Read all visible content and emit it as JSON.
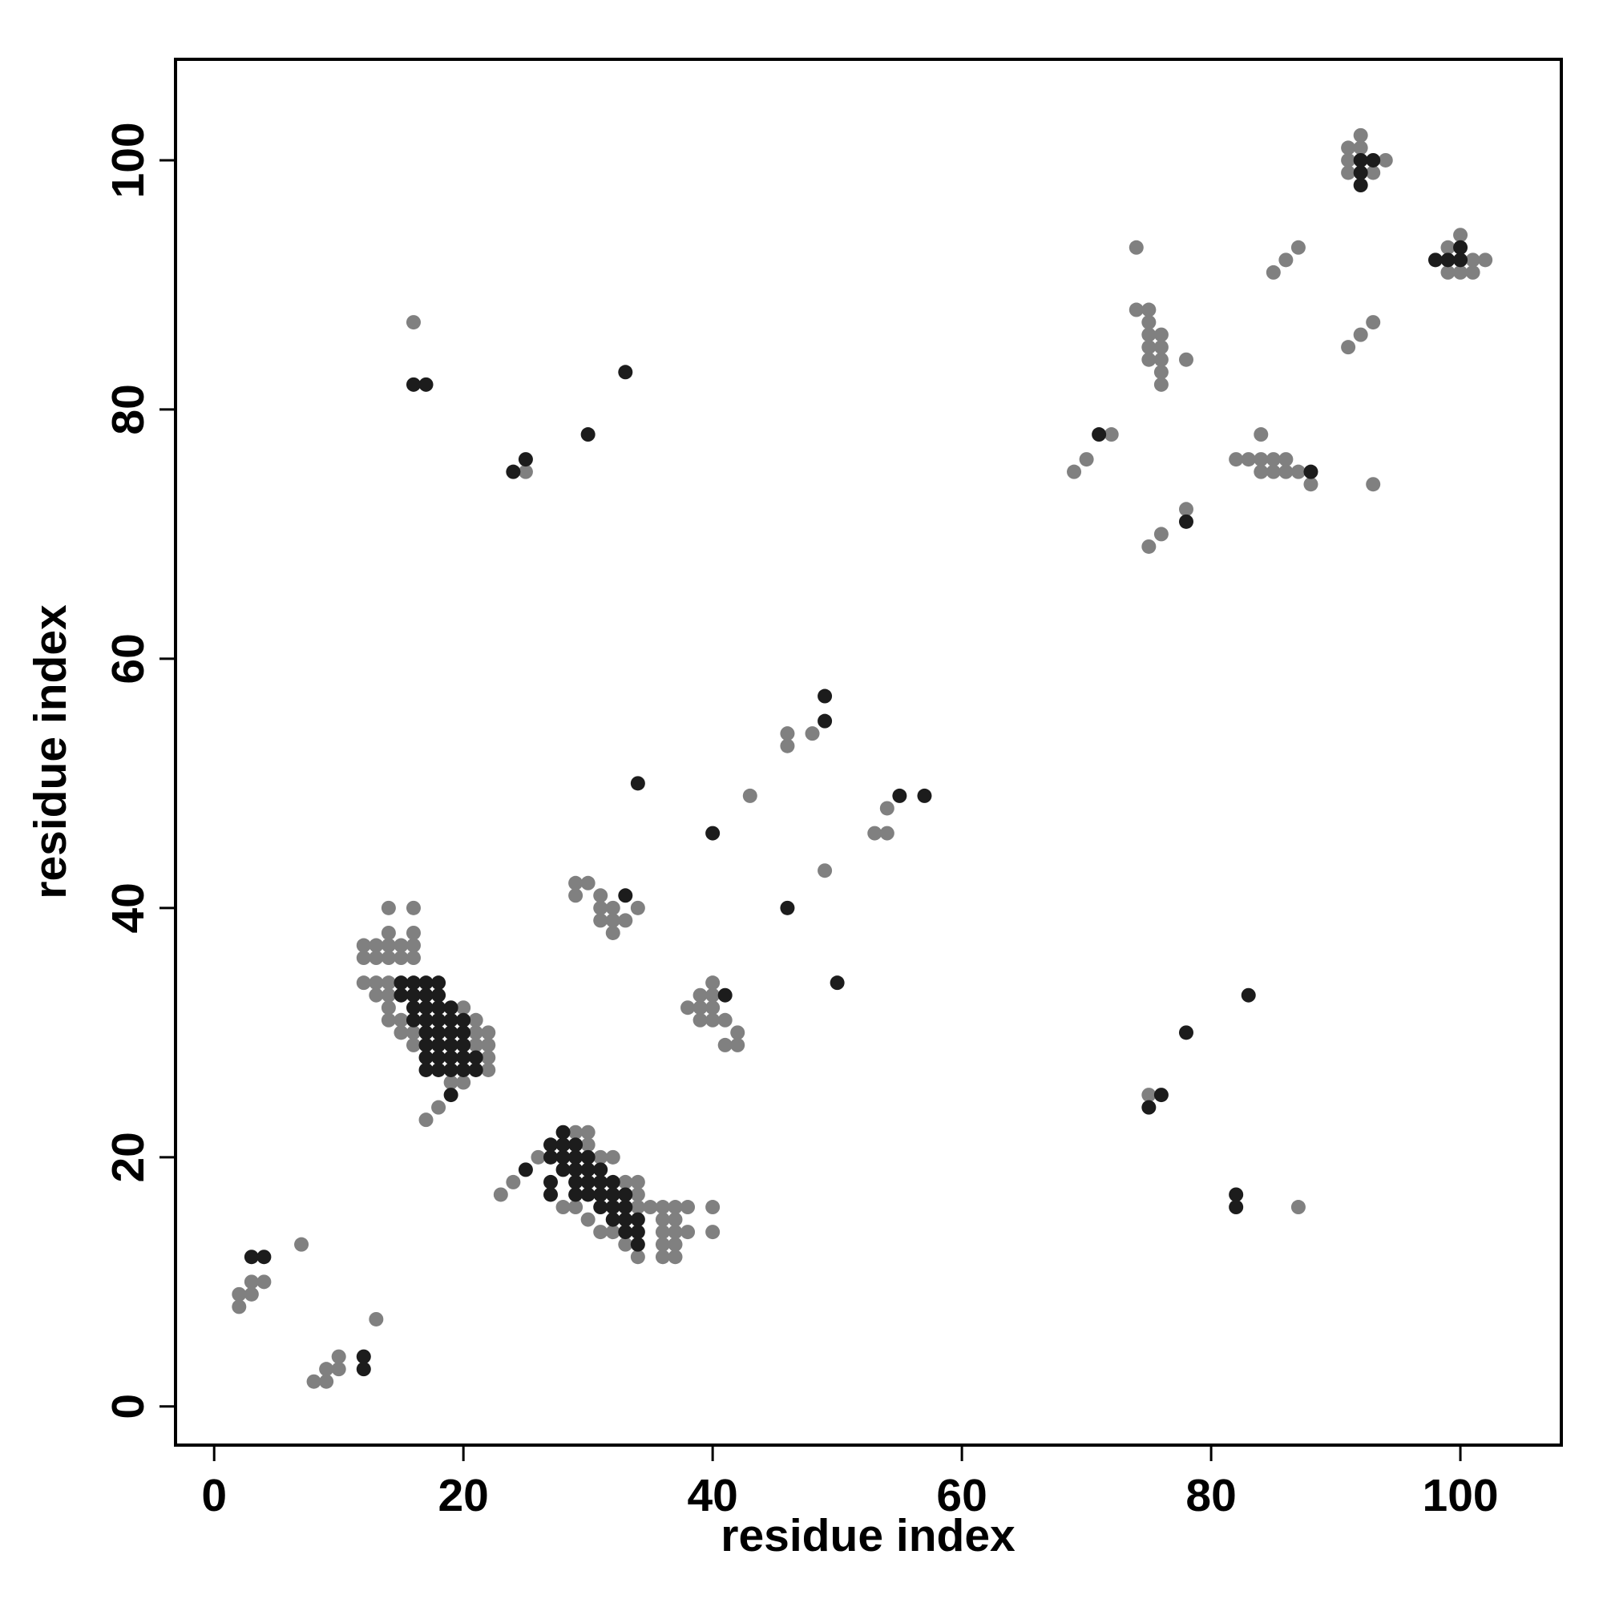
{
  "chart_data": {
    "type": "scatter",
    "x_label": "residue index",
    "y_label": "residue index",
    "xlim": [
      -3.1,
      108.1
    ],
    "ylim": [
      -3.1,
      108.1
    ],
    "xticks": [
      0,
      20,
      40,
      60,
      80,
      100
    ],
    "yticks": [
      0,
      20,
      40,
      60,
      80,
      100
    ],
    "grid": false,
    "series": [
      {
        "color": "#808080",
        "x": [
          2,
          2,
          3,
          3,
          4,
          7,
          8,
          9,
          9,
          10,
          10,
          13,
          14,
          16,
          16,
          14,
          12,
          13,
          14,
          15,
          16,
          12,
          13,
          14,
          15,
          16,
          12,
          13,
          14,
          13,
          14,
          14,
          14,
          15,
          15,
          16,
          16,
          20,
          21,
          21,
          22,
          21,
          22,
          17,
          18,
          19,
          20,
          22,
          22,
          23,
          24,
          26,
          29,
          30,
          30,
          31,
          32,
          33,
          34,
          34,
          34,
          35,
          36,
          37,
          38,
          40,
          36,
          37,
          36,
          37,
          38,
          40,
          36,
          37,
          36,
          37,
          34,
          33,
          28,
          29,
          30,
          31,
          32,
          29,
          30,
          29,
          31,
          32,
          31,
          32,
          33,
          34,
          32,
          31,
          38,
          39,
          39,
          40,
          40,
          40,
          41,
          41,
          42,
          42,
          39,
          40,
          43,
          46,
          46,
          48,
          49,
          53,
          54,
          54,
          16,
          25,
          69,
          70,
          72,
          74,
          74,
          75,
          75,
          75,
          75,
          75,
          76,
          76,
          76,
          76,
          76,
          78,
          75,
          76,
          78,
          82,
          83,
          84,
          84,
          85,
          85,
          86,
          86,
          87,
          88,
          84,
          85,
          86,
          87,
          91,
          92,
          93,
          93,
          75,
          87,
          91,
          92,
          91,
          91,
          92,
          93,
          94,
          99,
          100,
          99,
          100,
          101,
          101,
          102
        ],
        "y": [
          8,
          9,
          9,
          10,
          10,
          13,
          2,
          2,
          3,
          3,
          4,
          7,
          40,
          40,
          38,
          38,
          37,
          37,
          37,
          37,
          37,
          36,
          36,
          36,
          36,
          36,
          34,
          34,
          34,
          33,
          33,
          32,
          31,
          31,
          30,
          30,
          29,
          32,
          31,
          30,
          30,
          29,
          29,
          23,
          24,
          26,
          26,
          28,
          27,
          17,
          18,
          20,
          22,
          22,
          21,
          20,
          20,
          18,
          18,
          17,
          16,
          16,
          16,
          16,
          16,
          16,
          15,
          15,
          14,
          14,
          14,
          14,
          13,
          13,
          12,
          12,
          12,
          13,
          16,
          16,
          15,
          14,
          14,
          42,
          42,
          41,
          41,
          40,
          39,
          39,
          39,
          40,
          38,
          40,
          32,
          33,
          31,
          34,
          32,
          31,
          31,
          29,
          30,
          29,
          32,
          33,
          49,
          54,
          53,
          54,
          43,
          46,
          46,
          48,
          87,
          75,
          75,
          76,
          78,
          93,
          88,
          88,
          87,
          86,
          85,
          84,
          86,
          85,
          84,
          83,
          82,
          84,
          69,
          70,
          72,
          76,
          76,
          76,
          75,
          76,
          75,
          76,
          75,
          75,
          74,
          78,
          91,
          92,
          93,
          85,
          86,
          87,
          74,
          25,
          16,
          101,
          102,
          100,
          99,
          101,
          99,
          100,
          93,
          94,
          91,
          91,
          91,
          92,
          92
        ]
      },
      {
        "color": "#1c1c1c",
        "x": [
          3,
          4,
          12,
          12,
          15,
          16,
          17,
          18,
          15,
          16,
          17,
          18,
          16,
          17,
          18,
          19,
          16,
          17,
          18,
          19,
          20,
          17,
          18,
          19,
          20,
          17,
          18,
          19,
          20,
          17,
          18,
          19,
          20,
          21,
          18,
          19,
          20,
          21,
          17,
          19,
          25,
          27,
          27,
          27,
          28,
          28,
          28,
          29,
          29,
          29,
          30,
          30,
          30,
          31,
          31,
          31,
          32,
          32,
          32,
          33,
          33,
          33,
          34,
          34,
          34,
          29,
          30,
          31,
          32,
          33,
          28,
          27,
          29,
          33,
          41,
          34,
          40,
          46,
          49,
          49,
          50,
          55,
          57,
          16,
          17,
          24,
          25,
          30,
          33,
          71,
          78,
          88,
          78,
          83,
          76,
          75,
          82,
          82,
          92,
          93,
          92,
          92,
          98,
          99,
          100,
          100
        ],
        "y": [
          12,
          12,
          4,
          3,
          34,
          34,
          34,
          34,
          33,
          33,
          33,
          33,
          32,
          32,
          32,
          32,
          31,
          31,
          31,
          31,
          31,
          30,
          30,
          30,
          30,
          29,
          29,
          29,
          29,
          28,
          28,
          28,
          28,
          28,
          27,
          27,
          27,
          27,
          27,
          25,
          19,
          18,
          17,
          21,
          22,
          21,
          20,
          21,
          20,
          19,
          20,
          19,
          18,
          19,
          18,
          17,
          18,
          17,
          16,
          17,
          16,
          15,
          15,
          14,
          13,
          18,
          17,
          16,
          15,
          14,
          19,
          20,
          17,
          41,
          33,
          50,
          46,
          40,
          57,
          55,
          34,
          49,
          49,
          82,
          82,
          75,
          76,
          78,
          83,
          78,
          71,
          75,
          30,
          33,
          25,
          24,
          17,
          16,
          100,
          100,
          99,
          98,
          92,
          92,
          92,
          93
        ]
      }
    ]
  }
}
